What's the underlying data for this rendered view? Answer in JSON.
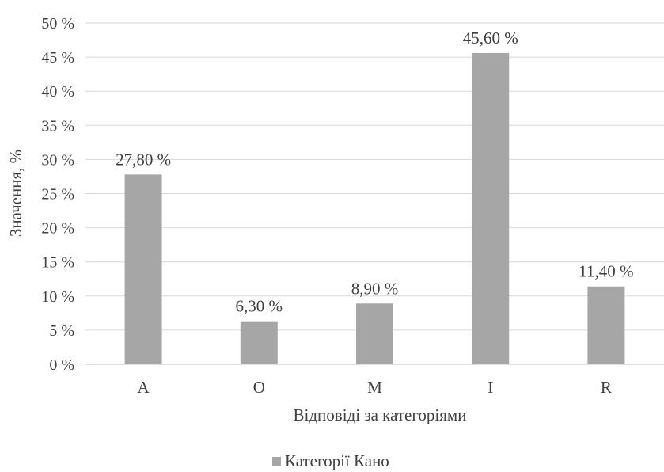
{
  "chart_data": {
    "type": "bar",
    "categories": [
      "A",
      "O",
      "M",
      "I",
      "R"
    ],
    "series": [
      {
        "name": "Категорії Кано",
        "values": [
          27.8,
          6.3,
          8.9,
          45.6,
          11.4
        ]
      }
    ],
    "data_labels": [
      "27,80 %",
      "6,30 %",
      "8,90 %",
      "45,60 %",
      "11,40 %"
    ],
    "y_ticks": [
      0,
      5,
      10,
      15,
      20,
      25,
      30,
      35,
      40,
      45,
      50
    ],
    "y_tick_labels": [
      "0 %",
      "5 %",
      "10 %",
      "15 %",
      "20 %",
      "25 %",
      "30 %",
      "35 %",
      "40 %",
      "45 %",
      "50 %"
    ],
    "ylim": [
      0,
      50
    ],
    "xlabel": "Відповіді за категоріями",
    "ylabel": "Значення, %",
    "legend": {
      "position": "bottom",
      "entries": [
        "Категорії Кано"
      ]
    },
    "grid": true,
    "bar_color": "#a6a6a6"
  }
}
